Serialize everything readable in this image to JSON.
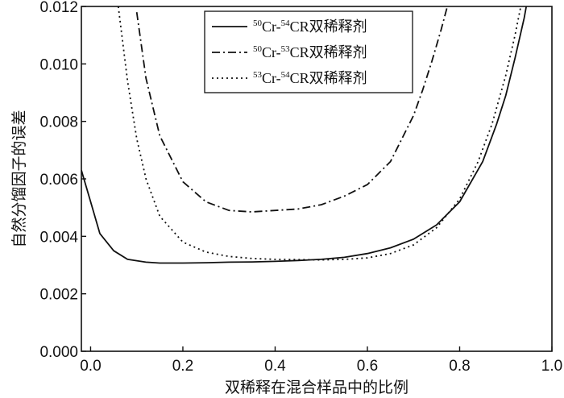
{
  "chart_data": {
    "type": "line",
    "xlabel": "双稀释在混合样品中的比例",
    "ylabel": "自然分馏因子的误差",
    "xlim": [
      -0.02,
      1.0
    ],
    "ylim": [
      0.0,
      0.012
    ],
    "x_ticks": [
      "0.0",
      "0.2",
      "0.4",
      "0.6",
      "0.8",
      "1.0"
    ],
    "y_ticks": [
      "0.000",
      "0.002",
      "0.004",
      "0.006",
      "0.008",
      "0.010",
      "0.012"
    ],
    "grid": false,
    "legend_position": "top-right",
    "series": [
      {
        "name": "50Cr-54CR双稀释剂",
        "style": "solid",
        "x": [
          -0.02,
          0.0,
          0.02,
          0.05,
          0.08,
          0.1,
          0.12,
          0.15,
          0.2,
          0.25,
          0.3,
          0.35,
          0.4,
          0.45,
          0.5,
          0.55,
          0.6,
          0.65,
          0.7,
          0.75,
          0.8,
          0.85,
          0.88,
          0.9,
          0.92,
          0.94,
          0.95
        ],
        "y": [
          0.0063,
          0.0052,
          0.0041,
          0.0035,
          0.0032,
          0.00315,
          0.0031,
          0.00307,
          0.00307,
          0.00308,
          0.0031,
          0.00311,
          0.00313,
          0.00316,
          0.0032,
          0.00327,
          0.0034,
          0.0036,
          0.0039,
          0.0044,
          0.0052,
          0.0066,
          0.0079,
          0.0089,
          0.0102,
          0.0116,
          0.0125
        ]
      },
      {
        "name": "50Cr-53CR双稀释剂",
        "style": "dash-dot",
        "x": [
          0.1,
          0.12,
          0.15,
          0.2,
          0.25,
          0.3,
          0.35,
          0.4,
          0.45,
          0.5,
          0.55,
          0.6,
          0.65,
          0.7,
          0.72,
          0.74,
          0.76,
          0.78
        ],
        "y": [
          0.0118,
          0.0095,
          0.0075,
          0.0059,
          0.0052,
          0.0049,
          0.00485,
          0.0049,
          0.00495,
          0.0051,
          0.0054,
          0.0058,
          0.0066,
          0.0082,
          0.0091,
          0.0101,
          0.0112,
          0.0124
        ]
      },
      {
        "name": "53Cr-54CR双稀释剂",
        "style": "dotted",
        "x": [
          0.06,
          0.08,
          0.1,
          0.12,
          0.15,
          0.2,
          0.25,
          0.3,
          0.35,
          0.4,
          0.45,
          0.5,
          0.55,
          0.6,
          0.65,
          0.7,
          0.75,
          0.8,
          0.84,
          0.87,
          0.9,
          0.92,
          0.935
        ],
        "y": [
          0.012,
          0.0094,
          0.0074,
          0.006,
          0.0047,
          0.0038,
          0.00345,
          0.0033,
          0.00323,
          0.0032,
          0.00319,
          0.00318,
          0.0032,
          0.00325,
          0.0034,
          0.0037,
          0.0043,
          0.0053,
          0.0066,
          0.0079,
          0.0096,
          0.011,
          0.0122
        ]
      }
    ],
    "legend": [
      {
        "mass1": "50",
        "el1": "Cr-",
        "mass2": "54",
        "tail": "CR双稀释剂"
      },
      {
        "mass1": "50",
        "el1": "Cr-",
        "mass2": "53",
        "tail": "CR双稀释剂"
      },
      {
        "mass1": "53",
        "el1": "Cr-",
        "mass2": "54",
        "tail": "CR双稀释剂"
      }
    ]
  }
}
